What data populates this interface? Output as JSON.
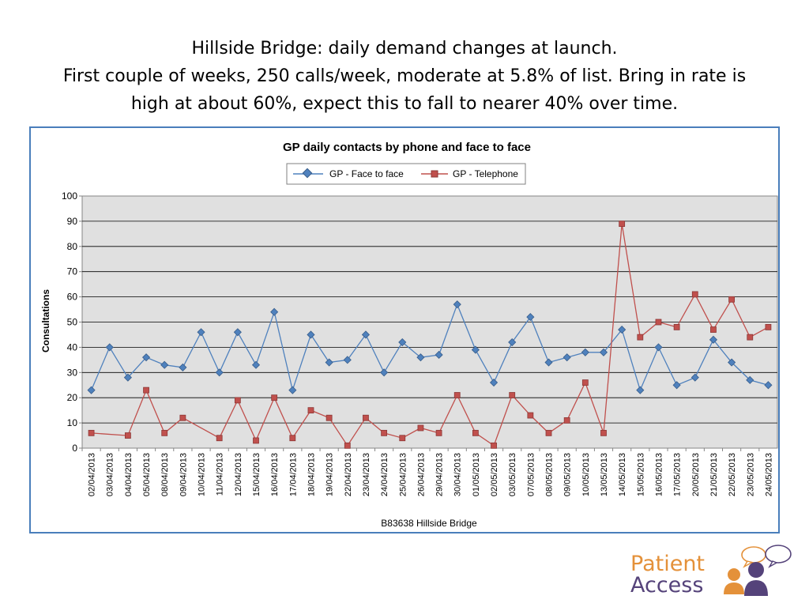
{
  "slide": {
    "title_lines": [
      "Hillside Bridge:  daily demand changes at launch.",
      "First couple of weeks, 250 calls/week, moderate at 5.8% of list. Bring in rate is",
      "high at about 60%, expect this to fall to nearer 40% over time."
    ]
  },
  "logo": {
    "line1": "Patient",
    "line2": "Access"
  },
  "chart_data": {
    "type": "line",
    "title": "GP daily contacts by phone and face to face",
    "xlabel": "B83638 Hillside Bridge",
    "ylabel": "Consultations",
    "ylim": [
      0,
      100
    ],
    "yticks": [
      0,
      10,
      20,
      30,
      40,
      50,
      60,
      70,
      80,
      90,
      100
    ],
    "grid": true,
    "legend_position": "top",
    "categories": [
      "02/04/2013",
      "03/04/2013",
      "04/04/2013",
      "05/04/2013",
      "08/04/2013",
      "09/04/2013",
      "10/04/2013",
      "11/04/2013",
      "12/04/2013",
      "15/04/2013",
      "16/04/2013",
      "17/04/2013",
      "18/04/2013",
      "19/04/2013",
      "22/04/2013",
      "23/04/2013",
      "24/04/2013",
      "25/04/2013",
      "26/04/2013",
      "29/04/2013",
      "30/04/2013",
      "01/05/2013",
      "02/05/2013",
      "03/05/2013",
      "07/05/2013",
      "08/05/2013",
      "09/05/2013",
      "10/05/2013",
      "13/05/2013",
      "14/05/2013",
      "15/05/2013",
      "16/05/2013",
      "17/05/2013",
      "20/05/2013",
      "21/05/2013",
      "22/05/2013",
      "23/05/2013",
      "24/05/2013"
    ],
    "series": [
      {
        "name": "GP - Face to face",
        "color": "#4f81bd",
        "marker": "diamond",
        "values": [
          23,
          40,
          28,
          36,
          33,
          32,
          46,
          30,
          46,
          33,
          54,
          23,
          45,
          34,
          35,
          45,
          30,
          42,
          36,
          37,
          57,
          39,
          26,
          42,
          52,
          34,
          36,
          38,
          38,
          47,
          23,
          40,
          25,
          28,
          43,
          34,
          27,
          25
        ]
      },
      {
        "name": "GP - Telephone",
        "color": "#c0504d",
        "marker": "square",
        "values": [
          6,
          null,
          5,
          23,
          6,
          12,
          null,
          4,
          19,
          3,
          20,
          4,
          15,
          12,
          1,
          12,
          6,
          4,
          8,
          6,
          21,
          6,
          1,
          21,
          13,
          6,
          11,
          26,
          6,
          89,
          44,
          50,
          48,
          61,
          47,
          59,
          44,
          48
        ]
      }
    ]
  }
}
